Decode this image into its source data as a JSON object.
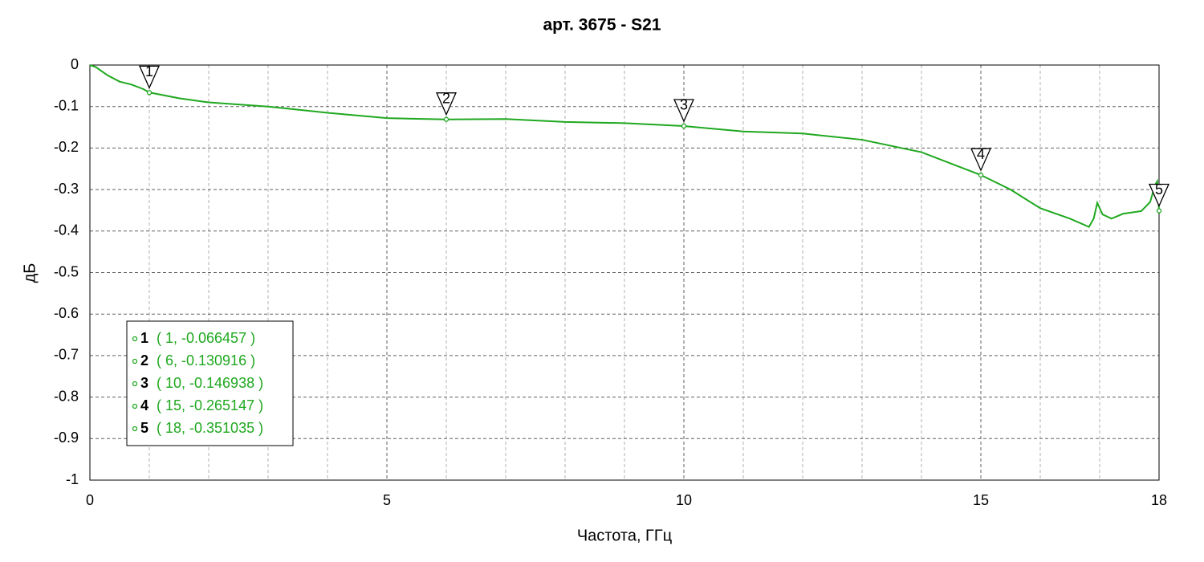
{
  "chart_data": {
    "type": "line",
    "title": "арт. 3675 - S21",
    "xlabel": "Частота, ГГц",
    "ylabel": "дБ",
    "x": [
      0,
      0.1,
      0.3,
      0.5,
      0.7,
      0.9,
      1,
      1.5,
      2,
      3,
      4,
      5,
      6,
      7,
      8,
      9,
      10,
      11,
      12,
      13,
      14,
      15,
      15.5,
      16,
      16.5,
      16.82,
      16.9,
      16.96,
      17.05,
      17.2,
      17.4,
      17.7,
      17.85,
      17.93,
      17.97,
      18
    ],
    "series": [
      {
        "color": "#1fa81f",
        "values": [
          0,
          -0.005,
          -0.025,
          -0.04,
          -0.047,
          -0.058,
          -0.066,
          -0.08,
          -0.09,
          -0.1,
          -0.115,
          -0.128,
          -0.131,
          -0.13,
          -0.137,
          -0.14,
          -0.147,
          -0.16,
          -0.165,
          -0.18,
          -0.21,
          -0.265,
          -0.3,
          -0.345,
          -0.37,
          -0.39,
          -0.37,
          -0.332,
          -0.36,
          -0.37,
          -0.358,
          -0.352,
          -0.33,
          -0.29,
          -0.28,
          -0.351
        ]
      }
    ],
    "markers": [
      {
        "label": "1",
        "x": 1,
        "y": -0.066457,
        "text": "( 1, -0.066457 )"
      },
      {
        "label": "2",
        "x": 6,
        "y": -0.130916,
        "text": "( 6, -0.130916 )"
      },
      {
        "label": "3",
        "x": 10,
        "y": -0.146938,
        "text": "( 10, -0.146938 )"
      },
      {
        "label": "4",
        "x": 15,
        "y": -0.265147,
        "text": "( 15, -0.265147 )"
      },
      {
        "label": "5",
        "x": 18,
        "y": -0.351035,
        "text": "( 18, -0.351035 )"
      }
    ],
    "xlim": [
      0,
      18
    ],
    "xticks": [
      0,
      5,
      10,
      15,
      18
    ],
    "xminorticks": [
      1,
      2,
      3,
      4,
      6,
      7,
      8,
      9,
      11,
      12,
      13,
      14,
      16,
      17
    ],
    "ylim": [
      -1,
      0
    ],
    "yticks": [
      0,
      -0.1,
      -0.2,
      -0.3,
      -0.4,
      -0.5,
      -0.6,
      -0.7,
      -0.8,
      -0.9,
      -1
    ],
    "grid": true
  }
}
